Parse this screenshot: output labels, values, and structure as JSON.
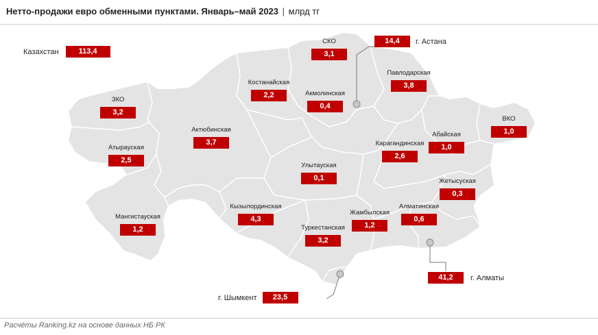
{
  "header": {
    "title": "Нетто-продажи евро обменными пунктами. Январь–май 2023",
    "separator": "|",
    "unit": "млрд тг"
  },
  "footer": {
    "source": "Расчёты Ranking.kz на основе данных НБ РК"
  },
  "colors": {
    "badge": "#c00000",
    "map_fill": "#e4e4e4",
    "border": "#ffffff",
    "leader_line": "#777777"
  },
  "totals": {
    "country_label": "Казахстан",
    "country_value": "113,4"
  },
  "regions": {
    "sko": {
      "label": "СКО",
      "value": "3,1"
    },
    "kostanay": {
      "label": "Костанайская",
      "value": "2,2"
    },
    "akmola": {
      "label": "Акмолинская",
      "value": "0,4"
    },
    "pavlodar": {
      "label": "Павлодарская",
      "value": "3,8"
    },
    "zko": {
      "label": "ЗКО",
      "value": "3,2"
    },
    "aktobe": {
      "label": "Актюбинская",
      "value": "3,7"
    },
    "atyrau": {
      "label": "Атырауская",
      "value": "2,5"
    },
    "vko": {
      "label": "ВКО",
      "value": "1,0"
    },
    "abai": {
      "label": "Абайская",
      "value": "1,0"
    },
    "karaganda": {
      "label": "Карагандинская",
      "value": "2,6"
    },
    "ulytau": {
      "label": "Улытауская",
      "value": "0,1"
    },
    "zhetysu": {
      "label": "Жетысуская",
      "value": "0,3"
    },
    "mangystau": {
      "label": "Мангистауская",
      "value": "1,2"
    },
    "kyzylorda": {
      "label": "Кызылординская",
      "value": "4,3"
    },
    "zhambyl": {
      "label": "Жамбылская",
      "value": "1,2"
    },
    "almaty_region": {
      "label": "Алматинская",
      "value": "0,6"
    },
    "turkestan": {
      "label": "Туркестанская",
      "value": "3,2"
    }
  },
  "cities": {
    "astana": {
      "label": "г. Астана",
      "value": "14,4"
    },
    "almaty": {
      "label": "г. Алматы",
      "value": "41,2"
    },
    "shymkent": {
      "label": "г. Шымкент",
      "value": "23,5"
    }
  }
}
